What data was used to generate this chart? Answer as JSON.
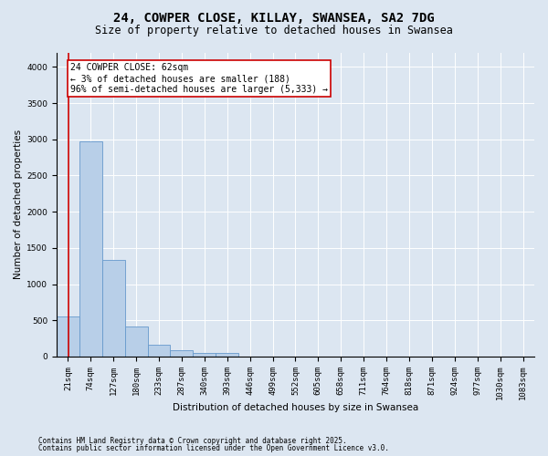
{
  "title_line1": "24, COWPER CLOSE, KILLAY, SWANSEA, SA2 7DG",
  "title_line2": "Size of property relative to detached houses in Swansea",
  "xlabel": "Distribution of detached houses by size in Swansea",
  "ylabel": "Number of detached properties",
  "categories": [
    "21sqm",
    "74sqm",
    "127sqm",
    "180sqm",
    "233sqm",
    "287sqm",
    "340sqm",
    "393sqm",
    "446sqm",
    "499sqm",
    "552sqm",
    "605sqm",
    "658sqm",
    "711sqm",
    "764sqm",
    "818sqm",
    "871sqm",
    "924sqm",
    "977sqm",
    "1030sqm",
    "1083sqm"
  ],
  "values": [
    560,
    2970,
    1340,
    420,
    165,
    90,
    55,
    45,
    0,
    0,
    0,
    0,
    0,
    0,
    0,
    0,
    0,
    0,
    0,
    0,
    0
  ],
  "bar_color": "#b8cfe8",
  "bar_edge_color": "#6699cc",
  "annotation_text": "24 COWPER CLOSE: 62sqm\n← 3% of detached houses are smaller (188)\n96% of semi-detached houses are larger (5,333) →",
  "annotation_box_color": "#ffffff",
  "annotation_box_edge_color": "#cc0000",
  "vline_color": "#cc0000",
  "vline_x": 0.52,
  "ylim": [
    0,
    4200
  ],
  "yticks": [
    0,
    500,
    1000,
    1500,
    2000,
    2500,
    3000,
    3500,
    4000
  ],
  "background_color": "#dce6f1",
  "plot_bg_color": "#dce6f1",
  "footer_line1": "Contains HM Land Registry data © Crown copyright and database right 2025.",
  "footer_line2": "Contains public sector information licensed under the Open Government Licence v3.0.",
  "title_fontsize": 10,
  "subtitle_fontsize": 8.5,
  "axis_label_fontsize": 7.5,
  "tick_fontsize": 6.5,
  "annotation_fontsize": 7,
  "footer_fontsize": 5.5
}
